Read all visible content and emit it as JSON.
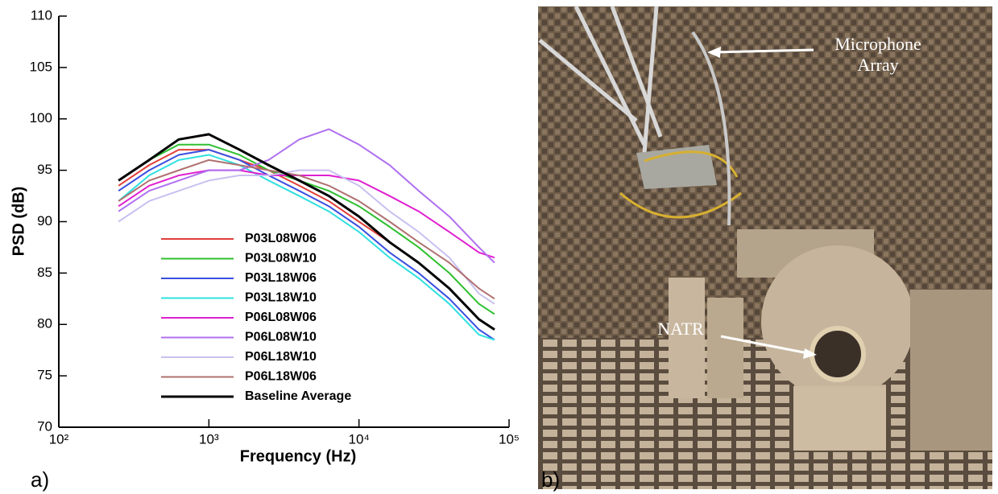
{
  "chart_data": {
    "type": "line",
    "xlabel": "Frequency (Hz)",
    "ylabel": "PSD (dB)",
    "log_x": true,
    "xlim": [
      100,
      100000
    ],
    "xticks": [
      {
        "value": 100,
        "label": "10²"
      },
      {
        "value": 1000,
        "label": "10³"
      },
      {
        "value": 10000,
        "label": "10⁴"
      },
      {
        "value": 100000,
        "label": "10⁵"
      }
    ],
    "ylim": [
      70,
      110
    ],
    "yticks": [
      70,
      75,
      80,
      85,
      90,
      95,
      100,
      105,
      110
    ],
    "x": [
      250,
      400,
      630,
      1000,
      1600,
      2500,
      4000,
      6300,
      10000,
      16000,
      25000,
      40000,
      63000,
      80000
    ],
    "series": [
      {
        "name": "P03L08W06",
        "color": "#e0403a",
        "values": [
          93.5,
          95.5,
          97,
          97,
          96,
          95,
          93.5,
          92,
          90,
          88,
          86,
          83.5,
          80.5,
          79.5
        ]
      },
      {
        "name": "P03L08W10",
        "color": "#30c030",
        "values": [
          94,
          96,
          97.5,
          97.5,
          96.5,
          95,
          94,
          93,
          91.5,
          89.5,
          87.5,
          85,
          82,
          81
        ]
      },
      {
        "name": "P03L18W06",
        "color": "#3a4fe0",
        "values": [
          93,
          95,
          96.5,
          97,
          96,
          94.5,
          93,
          91.5,
          89.5,
          87,
          85,
          82.5,
          79.5,
          78.5
        ]
      },
      {
        "name": "P03L18W10",
        "color": "#2fe0e0",
        "values": [
          92,
          94.5,
          96,
          96.5,
          95.5,
          94,
          92.5,
          91,
          89,
          86.5,
          84.5,
          82,
          79,
          78.5
        ]
      },
      {
        "name": "P06L08W06",
        "color": "#e020d0",
        "values": [
          91.5,
          93.5,
          94.5,
          95,
          95,
          94.5,
          94.5,
          94.5,
          94,
          92.5,
          91,
          89,
          87,
          86.5
        ]
      },
      {
        "name": "P06L08W10",
        "color": "#b070f0",
        "values": [
          91,
          93,
          94,
          95,
          95,
          96,
          98,
          99,
          97.5,
          95.5,
          93,
          90.5,
          87.5,
          86
        ]
      },
      {
        "name": "P06L18W10",
        "color": "#c8c0f0",
        "values": [
          90,
          92,
          93,
          94,
          94.5,
          94.5,
          95,
          95,
          93.5,
          91,
          89,
          86.5,
          83,
          82
        ]
      },
      {
        "name": "P06L18W06",
        "color": "#b07070",
        "values": [
          92,
          94,
          95,
          96,
          95.5,
          95,
          94.5,
          93.5,
          92,
          90,
          88,
          86,
          83.5,
          82.5
        ]
      },
      {
        "name": "Baseline Average",
        "color": "#000000",
        "values": [
          94,
          96,
          98,
          98.5,
          97,
          95.5,
          94,
          92.5,
          90.5,
          88,
          86,
          83.5,
          80.5,
          79.5
        ]
      }
    ]
  },
  "panels": {
    "a": "a)",
    "b": "b)"
  },
  "photo": {
    "annotations": [
      "Microphone Array",
      "NATR"
    ]
  }
}
